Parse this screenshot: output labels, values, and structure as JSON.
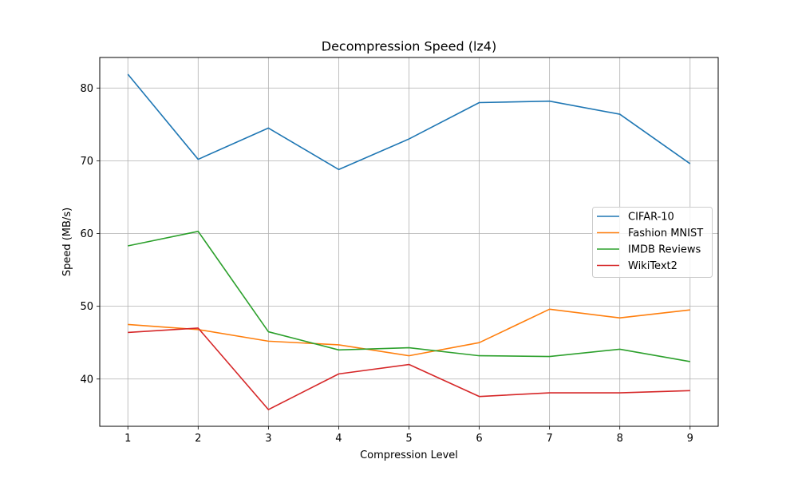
{
  "chart_data": {
    "type": "line",
    "title": "Decompression Speed (lz4)",
    "xlabel": "Compression Level",
    "ylabel": "Speed (MB/s)",
    "x": [
      1,
      2,
      3,
      4,
      5,
      6,
      7,
      8,
      9
    ],
    "xticks": [
      "1",
      "2",
      "3",
      "4",
      "5",
      "6",
      "7",
      "8",
      "9"
    ],
    "yticks": [
      "40",
      "50",
      "60",
      "70",
      "80"
    ],
    "xlim": [
      0.6,
      9.4
    ],
    "ylim": [
      33.5,
      84.2
    ],
    "grid": true,
    "legend_position": "center-right",
    "series": [
      {
        "name": "CIFAR-10",
        "color": "#1f77b4",
        "values": [
          81.9,
          70.2,
          74.5,
          68.8,
          73.0,
          78.0,
          78.2,
          76.4,
          69.6
        ]
      },
      {
        "name": "Fashion MNIST",
        "color": "#ff7f0e",
        "values": [
          47.5,
          46.8,
          45.2,
          44.7,
          43.2,
          45.0,
          49.6,
          48.4,
          49.5
        ]
      },
      {
        "name": "IMDB Reviews",
        "color": "#2ca02c",
        "values": [
          58.3,
          60.3,
          46.5,
          44.0,
          44.3,
          43.2,
          43.1,
          44.1,
          42.4
        ]
      },
      {
        "name": "WikiText2",
        "color": "#d62728",
        "values": [
          46.4,
          47.0,
          35.8,
          40.7,
          42.0,
          37.6,
          38.1,
          38.1,
          38.4
        ]
      }
    ]
  }
}
